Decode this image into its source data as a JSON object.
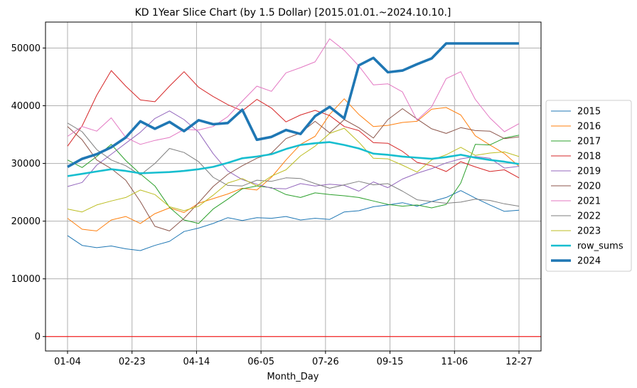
{
  "chart_data": {
    "type": "line",
    "title": "KD 1Year Slice Chart (by 1.5 Dollar) [2015.01.01.~2024.10.10.]",
    "xlabel": "Month_Day",
    "ylabel": "",
    "x_ticks": [
      "01-04",
      "02-23",
      "04-14",
      "06-05",
      "07-26",
      "09-15",
      "11-06",
      "12-27"
    ],
    "ylim": [
      -2500,
      54500
    ],
    "y_ticks": [
      0,
      10000,
      20000,
      30000,
      40000,
      50000
    ],
    "grid": true,
    "legend_position": "outside-right",
    "reference_line": {
      "y": 0,
      "color": "#ff0000"
    },
    "series": [
      {
        "name": "2015",
        "color": "#1f77b4",
        "width": 1,
        "values": [
          17500,
          15800,
          15400,
          15700,
          15200,
          14900,
          15800,
          16500,
          18200,
          18800,
          19600,
          20600,
          20100,
          20600,
          20500,
          20800,
          20200,
          20500,
          20300,
          21600,
          21800,
          22500,
          22800,
          23200,
          22600,
          23400,
          24100,
          25300,
          24000,
          22800,
          21700,
          21900
        ]
      },
      {
        "name": "2016",
        "color": "#ff7f0e",
        "width": 1,
        "values": [
          20500,
          18600,
          18300,
          20200,
          20800,
          19600,
          21300,
          22300,
          21500,
          23100,
          23900,
          24700,
          25700,
          25400,
          27600,
          30600,
          33300,
          34700,
          38500,
          41200,
          38500,
          36400,
          36600,
          37100,
          37300,
          39400,
          39700,
          38400,
          34800,
          33200,
          31700,
          29500
        ]
      },
      {
        "name": "2017",
        "color": "#2ca02c",
        "width": 1,
        "values": [
          30600,
          29300,
          31200,
          33300,
          30500,
          28200,
          26100,
          22400,
          20200,
          19600,
          22100,
          23800,
          25600,
          26100,
          25800,
          24600,
          24100,
          24900,
          24600,
          24400,
          24100,
          23500,
          22900,
          22600,
          22800,
          22300,
          22900,
          26600,
          33300,
          33200,
          34400,
          34900
        ]
      },
      {
        "name": "2018",
        "color": "#d62728",
        "width": 1,
        "values": [
          33000,
          36500,
          41800,
          46100,
          43400,
          41000,
          40700,
          43400,
          45900,
          43200,
          41600,
          40200,
          39100,
          41100,
          39600,
          37200,
          38400,
          39200,
          38300,
          36400,
          35700,
          33600,
          33500,
          32100,
          30200,
          29600,
          28600,
          30300,
          29400,
          28600,
          28900,
          27500
        ]
      },
      {
        "name": "2019",
        "color": "#9467bd",
        "width": 1,
        "values": [
          26000,
          26700,
          29700,
          31600,
          33500,
          35400,
          37800,
          39100,
          37600,
          35400,
          31700,
          28700,
          27200,
          26400,
          25700,
          25600,
          26500,
          26100,
          26400,
          26200,
          25200,
          26800,
          25800,
          27300,
          28300,
          29100,
          30100,
          30800,
          31200,
          30900,
          29200,
          29500
        ]
      },
      {
        "name": "2020",
        "color": "#8c564b",
        "width": 1,
        "values": [
          36400,
          34100,
          30600,
          29100,
          27100,
          23400,
          19100,
          18300,
          20500,
          23200,
          26000,
          28100,
          29600,
          30900,
          31800,
          34300,
          35300,
          37300,
          35300,
          37600,
          36200,
          34400,
          37600,
          39500,
          37700,
          36000,
          35200,
          36200,
          35700,
          35600,
          34300,
          34600
        ]
      },
      {
        "name": "2021",
        "color": "#e377c2",
        "width": 1,
        "values": [
          34700,
          36400,
          35600,
          37900,
          34500,
          33300,
          34000,
          34500,
          35900,
          35800,
          36400,
          38100,
          40800,
          43400,
          42500,
          45700,
          46600,
          47600,
          51600,
          49600,
          46900,
          43600,
          43800,
          42400,
          37500,
          39800,
          44700,
          45900,
          41100,
          37900,
          35500,
          36900
        ]
      },
      {
        "name": "2022",
        "color": "#7f7f7f",
        "width": 1,
        "values": [
          37000,
          35500,
          32400,
          30600,
          29600,
          28000,
          30000,
          32600,
          31900,
          30300,
          27600,
          26200,
          26100,
          27100,
          26900,
          27500,
          27400,
          26500,
          25700,
          26300,
          26900,
          26300,
          26500,
          25200,
          23700,
          23400,
          23100,
          23300,
          23800,
          23600,
          23000,
          22600
        ]
      },
      {
        "name": "2023",
        "color": "#bcbd22",
        "width": 1,
        "values": [
          22100,
          21600,
          22800,
          23500,
          24100,
          25400,
          24600,
          22500,
          21800,
          22600,
          24500,
          26600,
          27400,
          26100,
          27800,
          28900,
          31300,
          33000,
          35200,
          36100,
          33700,
          30900,
          30800,
          29700,
          28500,
          30600,
          31500,
          32800,
          31400,
          31800,
          32000,
          31200
        ]
      },
      {
        "name": "row_sums",
        "color": "#17becf",
        "width": 2.6,
        "values": [
          27800,
          28200,
          28600,
          29000,
          28700,
          28300,
          28400,
          28500,
          28700,
          29000,
          29400,
          30100,
          30900,
          31200,
          31600,
          32500,
          33200,
          33500,
          33700,
          33200,
          32600,
          31700,
          31500,
          31200,
          31000,
          30800,
          31100,
          31500,
          31000,
          30600,
          30300,
          29900
        ]
      },
      {
        "name": "2024",
        "color": "#1f77b4",
        "width": 3.6,
        "values": [
          29400,
          30800,
          31600,
          32800,
          34500,
          37300,
          36000,
          37200,
          35600,
          37500,
          36800,
          37000,
          39300,
          34100,
          34600,
          35800,
          35100,
          38200,
          39800,
          37800,
          47000,
          48300,
          45800,
          46100,
          47200,
          48200,
          50800,
          50800,
          50800,
          50800,
          50800,
          50800
        ],
        "x_end_index": 31
      }
    ]
  }
}
